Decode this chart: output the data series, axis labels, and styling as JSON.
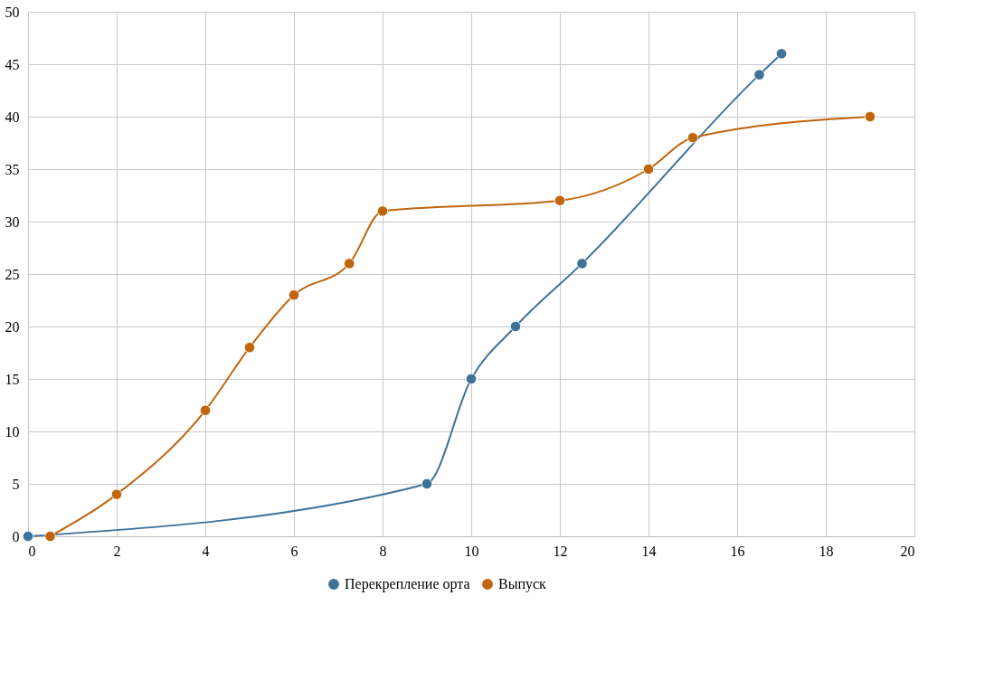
{
  "chart_data": {
    "type": "line",
    "xlim": [
      0,
      20
    ],
    "xticks": [
      0,
      2,
      4,
      6,
      8,
      10,
      12,
      14,
      16,
      18,
      20
    ],
    "ylim": [
      0,
      50
    ],
    "yticks": [
      0,
      5,
      10,
      15,
      20,
      25,
      30,
      35,
      40,
      45,
      50
    ],
    "grid": true,
    "legend": "bottom",
    "marker": "circle",
    "line_style": "solid",
    "series": [
      {
        "name": "Перекрепление орта",
        "color": "#3f7298",
        "x": [
          0,
          9,
          10,
          11,
          12.5,
          16.5,
          17
        ],
        "values": [
          0,
          5,
          15,
          20,
          26,
          44,
          46
        ]
      },
      {
        "name": "Выпуск",
        "color": "#c0650e",
        "x": [
          0.5,
          2,
          4,
          5,
          6,
          7.25,
          8,
          12,
          14,
          15,
          19
        ],
        "values": [
          0,
          4,
          12,
          18,
          23,
          26,
          31,
          32,
          35,
          38,
          40
        ]
      }
    ]
  }
}
